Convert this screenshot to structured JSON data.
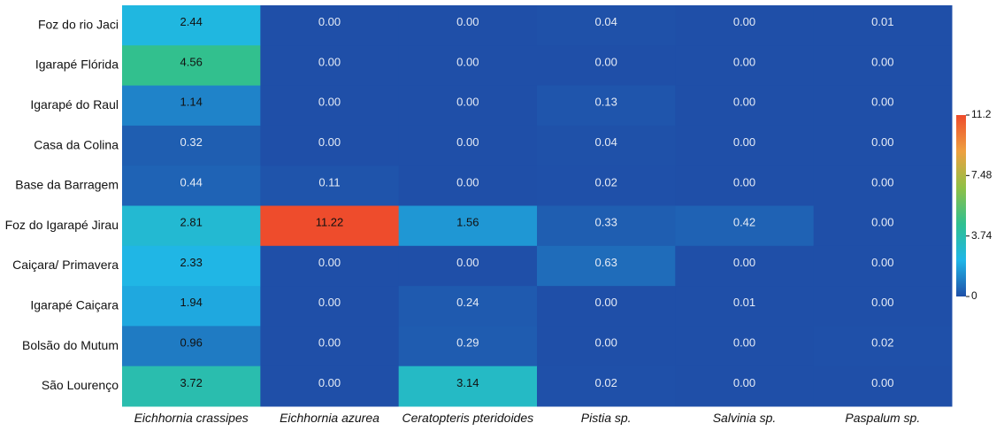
{
  "chart_data": {
    "type": "heatmap",
    "rows": [
      "Foz do rio Jaci",
      "Igarapé Flórida",
      "Igarapé do Raul",
      "Casa da Colina",
      "Base da Barragem",
      "Foz do Igarapé Jirau",
      "Caiçara/ Primavera",
      "Igarapé Caiçara",
      "Bolsão do Mutum",
      "São Lourenço"
    ],
    "columns": [
      "Eichhornia crassipes",
      "Eichhornia azurea",
      "Ceratopteris pteridoides",
      "Pistia sp.",
      "Salvinia sp.",
      "Paspalum sp."
    ],
    "values": [
      [
        "2.44",
        "0.00",
        "0.00",
        "0.04",
        "0.00",
        "0.01"
      ],
      [
        "4.56",
        "0.00",
        "0.00",
        "0.00",
        "0.00",
        "0.00"
      ],
      [
        "1.14",
        "0.00",
        "0.00",
        "0.13",
        "0.00",
        "0.00"
      ],
      [
        "0.32",
        "0.00",
        "0.00",
        "0.04",
        "0.00",
        "0.00"
      ],
      [
        "0.44",
        "0.11",
        "0.00",
        "0.02",
        "0.00",
        "0.00"
      ],
      [
        "2.81",
        "11.22",
        "1.56",
        "0.33",
        "0.42",
        "0.00"
      ],
      [
        "2.33",
        "0.00",
        "0.00",
        "0.63",
        "0.00",
        "0.00"
      ],
      [
        "1.94",
        "0.00",
        "0.24",
        "0.00",
        "0.01",
        "0.00"
      ],
      [
        "0.96",
        "0.00",
        "0.29",
        "0.00",
        "0.00",
        "0.02"
      ],
      [
        "3.72",
        "0.00",
        "3.14",
        "0.02",
        "0.00",
        "0.00"
      ]
    ],
    "colorbar": {
      "ticks": [
        "11.2",
        "7.48",
        "3.74",
        "0"
      ],
      "min": 0,
      "max": 11.22,
      "colors": [
        "#1f4fa8",
        "#1fb6e8",
        "#2fc090",
        "#8fc046",
        "#eea040",
        "#ee4c2c"
      ]
    }
  }
}
